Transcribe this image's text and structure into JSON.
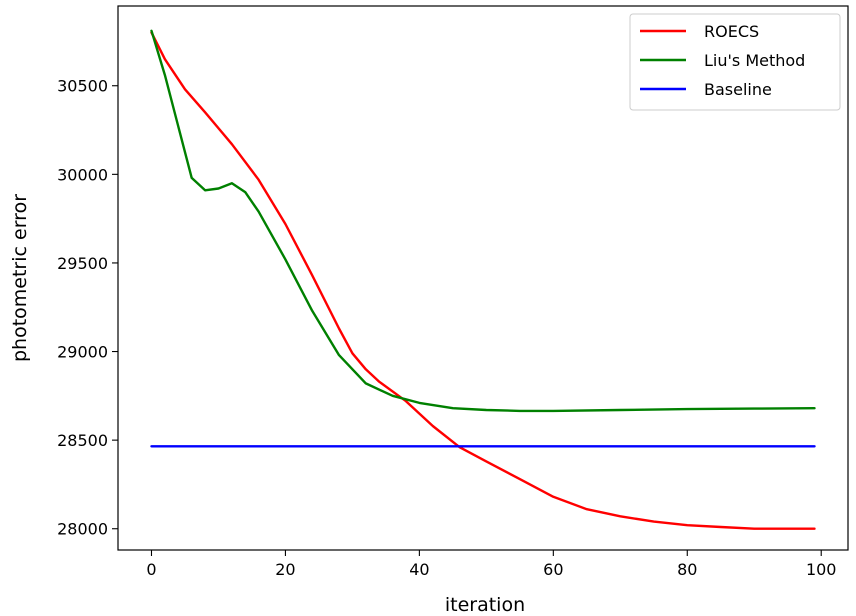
{
  "chart_data": {
    "type": "line",
    "title": "",
    "xlabel": "iteration",
    "ylabel": "photometric error",
    "xlim": [
      -5,
      104
    ],
    "ylim": [
      27880,
      30950
    ],
    "xticks": [
      0,
      20,
      40,
      60,
      80,
      100
    ],
    "yticks": [
      28000,
      28500,
      29000,
      29500,
      30000,
      30500
    ],
    "grid": false,
    "legend_position": "top-right",
    "series": [
      {
        "name": "ROECS",
        "color": "#ff0000",
        "x": [
          0,
          2,
          5,
          8,
          12,
          16,
          20,
          24,
          28,
          30,
          32,
          34,
          38,
          42,
          46,
          50,
          55,
          60,
          65,
          70,
          75,
          80,
          85,
          90,
          95,
          99
        ],
        "y": [
          30800,
          30650,
          30480,
          30350,
          30170,
          29970,
          29720,
          29430,
          29130,
          28990,
          28900,
          28830,
          28720,
          28580,
          28460,
          28380,
          28280,
          28180,
          28110,
          28070,
          28040,
          28020,
          28010,
          28000,
          28000,
          28000
        ]
      },
      {
        "name": "Liu's Method",
        "color": "#008000",
        "x": [
          0,
          2,
          4,
          6,
          8,
          10,
          12,
          14,
          16,
          20,
          24,
          28,
          32,
          36,
          40,
          45,
          50,
          55,
          60,
          70,
          80,
          90,
          99
        ],
        "y": [
          30810,
          30560,
          30270,
          29980,
          29910,
          29920,
          29950,
          29900,
          29790,
          29520,
          29230,
          28980,
          28820,
          28750,
          28710,
          28680,
          28670,
          28665,
          28665,
          28670,
          28675,
          28678,
          28680
        ]
      },
      {
        "name": "Baseline",
        "color": "#0000ff",
        "x": [
          0,
          99
        ],
        "y": [
          28465,
          28465
        ]
      }
    ]
  }
}
